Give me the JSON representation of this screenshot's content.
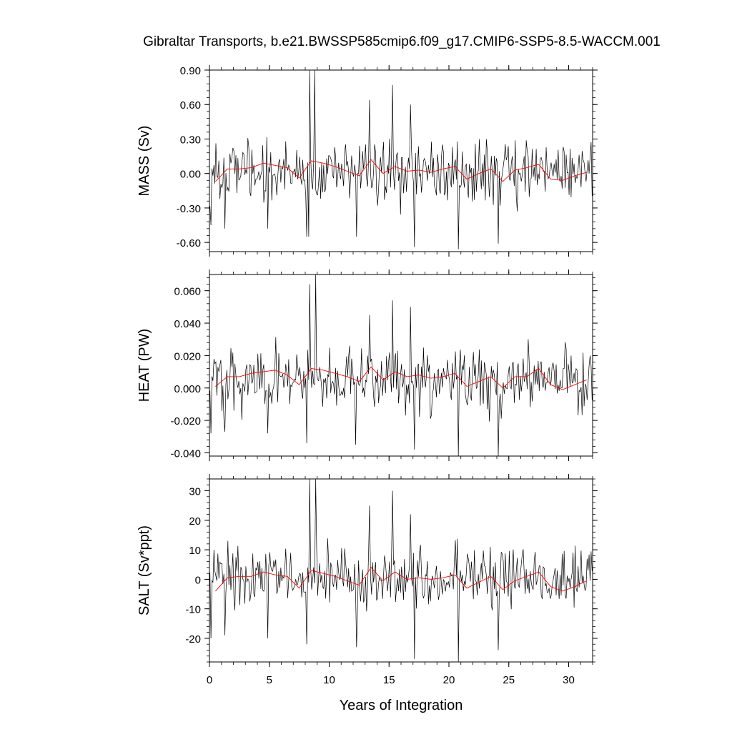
{
  "title": "Gibraltar Transports, b.e21.BWSSP585cmip6.f09_g17.CMIP6-SSP5-8.5-WACCM.001",
  "xlabel": "Years of Integration",
  "colors": {
    "monthly": "#000000",
    "annual_mean": "#ff0000"
  },
  "chart_data": [
    {
      "type": "line",
      "ylabel": "MASS (Sv)",
      "xlim": [
        0,
        32
      ],
      "ylim": [
        -0.68,
        0.9
      ],
      "yticks": [
        0.9,
        0.6,
        0.3,
        0.0,
        -0.3,
        -0.6
      ],
      "ytick_labels": [
        "0.90",
        "0.60",
        "0.30",
        "0.00",
        "-0.30",
        "-0.60"
      ],
      "xticks": [
        0,
        5,
        10,
        15,
        20,
        25,
        30
      ],
      "xtick_labels": [
        "0",
        "5",
        "10",
        "15",
        "20",
        "25",
        "30"
      ],
      "show_xtick_labels": false,
      "series": [
        {
          "style": "monthly",
          "x_start": 0.04,
          "x_step": 0.08333,
          "n": 384,
          "base": 0.0,
          "amp": 0.22,
          "extremes": [
            [
              0.1,
              -0.45
            ],
            [
              1.3,
              -0.48
            ],
            [
              4.9,
              -0.48
            ],
            [
              8.1,
              -0.55
            ],
            [
              8.3,
              -0.55
            ],
            [
              8.4,
              0.9
            ],
            [
              8.8,
              0.9
            ],
            [
              12.3,
              -0.55
            ],
            [
              15.3,
              0.77
            ],
            [
              17.1,
              -0.64
            ],
            [
              20.8,
              -0.66
            ],
            [
              24.1,
              -0.61
            ],
            [
              13.4,
              0.64
            ],
            [
              16.8,
              0.6
            ]
          ]
        },
        {
          "style": "annual_mean",
          "x": [
            0.5,
            1.5,
            2.5,
            3.5,
            4.5,
            5.5,
            6.5,
            7.5,
            8.5,
            9.5,
            10.5,
            11.5,
            12.5,
            13.5,
            14.5,
            15.5,
            16.5,
            17.5,
            18.5,
            19.5,
            20.5,
            21.5,
            22.5,
            23.5,
            24.5,
            25.5,
            26.5,
            27.5,
            28.5,
            29.5,
            30.5,
            31.5
          ],
          "values": [
            -0.07,
            0.04,
            0.04,
            0.05,
            0.09,
            0.07,
            0.05,
            -0.04,
            0.11,
            0.09,
            0.06,
            0.02,
            -0.02,
            0.12,
            0.0,
            0.06,
            0.02,
            0.03,
            0.01,
            0.04,
            0.06,
            -0.05,
            0.0,
            0.04,
            -0.07,
            0.03,
            0.05,
            0.08,
            -0.05,
            -0.06,
            -0.02,
            0.01
          ]
        }
      ]
    },
    {
      "type": "line",
      "ylabel": "HEAT (PW)",
      "xlim": [
        0,
        32
      ],
      "ylim": [
        -0.042,
        0.07
      ],
      "yticks": [
        0.06,
        0.04,
        0.02,
        0.0,
        -0.02,
        -0.04
      ],
      "ytick_labels": [
        "0.060",
        "0.040",
        "0.020",
        "0.000",
        "-0.020",
        "-0.040"
      ],
      "xticks": [
        0,
        5,
        10,
        15,
        20,
        25,
        30
      ],
      "xtick_labels": [
        "0",
        "5",
        "10",
        "15",
        "20",
        "25",
        "30"
      ],
      "show_xtick_labels": false,
      "series": [
        {
          "style": "monthly",
          "x_start": 0.04,
          "x_step": 0.08333,
          "n": 384,
          "base": 0.006,
          "amp": 0.015,
          "extremes": [
            [
              0.1,
              -0.028
            ],
            [
              1.3,
              -0.027
            ],
            [
              4.9,
              -0.028
            ],
            [
              8.1,
              -0.034
            ],
            [
              8.4,
              0.064
            ],
            [
              8.9,
              0.07
            ],
            [
              12.2,
              -0.035
            ],
            [
              15.3,
              0.054
            ],
            [
              17.1,
              -0.038
            ],
            [
              20.8,
              -0.042
            ],
            [
              24.1,
              -0.042
            ],
            [
              13.4,
              0.045
            ],
            [
              16.8,
              0.05
            ]
          ]
        },
        {
          "style": "annual_mean",
          "x": [
            0.5,
            1.5,
            2.5,
            3.5,
            4.5,
            5.5,
            6.5,
            7.5,
            8.5,
            9.5,
            10.5,
            11.5,
            12.5,
            13.5,
            14.5,
            15.5,
            16.5,
            17.5,
            18.5,
            19.5,
            20.5,
            21.5,
            22.5,
            23.5,
            24.5,
            25.5,
            26.5,
            27.5,
            28.5,
            29.5,
            30.5,
            31.5
          ],
          "values": [
            0.001,
            0.007,
            0.007,
            0.009,
            0.01,
            0.011,
            0.008,
            0.002,
            0.012,
            0.011,
            0.009,
            0.007,
            0.004,
            0.013,
            0.005,
            0.01,
            0.007,
            0.008,
            0.006,
            0.007,
            0.009,
            0.001,
            0.004,
            0.007,
            0.0,
            0.007,
            0.007,
            0.012,
            0.002,
            -0.001,
            0.002,
            0.005
          ]
        }
      ]
    },
    {
      "type": "line",
      "ylabel": "SALT (Sv*ppt)",
      "xlim": [
        0,
        32
      ],
      "ylim": [
        -28,
        34
      ],
      "yticks": [
        30,
        20,
        10,
        0,
        -10,
        -20
      ],
      "ytick_labels": [
        "30",
        "20",
        "10",
        "0",
        "-10",
        "-20"
      ],
      "xticks": [
        0,
        5,
        10,
        15,
        20,
        25,
        30
      ],
      "xtick_labels": [
        "0",
        "5",
        "10",
        "15",
        "20",
        "25",
        "30"
      ],
      "show_xtick_labels": true,
      "series": [
        {
          "style": "monthly",
          "x_start": 0.04,
          "x_step": 0.08333,
          "n": 384,
          "base": 0.0,
          "amp": 8.0,
          "extremes": [
            [
              0.1,
              -20
            ],
            [
              1.3,
              -19
            ],
            [
              4.9,
              -20
            ],
            [
              8.1,
              -22
            ],
            [
              8.4,
              34
            ],
            [
              8.9,
              34
            ],
            [
              12.3,
              -23
            ],
            [
              15.3,
              30
            ],
            [
              17.1,
              -27
            ],
            [
              20.8,
              -28
            ],
            [
              24.1,
              -24
            ],
            [
              13.4,
              25
            ],
            [
              16.8,
              22
            ]
          ]
        },
        {
          "style": "annual_mean",
          "x": [
            0.5,
            1.5,
            2.5,
            3.5,
            4.5,
            5.5,
            6.5,
            7.5,
            8.5,
            9.5,
            10.5,
            11.5,
            12.5,
            13.5,
            14.5,
            15.5,
            16.5,
            17.5,
            18.5,
            19.5,
            20.5,
            21.5,
            22.5,
            23.5,
            24.5,
            25.5,
            26.5,
            27.5,
            28.5,
            29.5,
            30.5,
            31.5
          ],
          "values": [
            -4,
            0.5,
            1,
            1,
            2.5,
            1.5,
            1,
            -3,
            3,
            2,
            1,
            -0.5,
            -2,
            4,
            -0.5,
            2.5,
            0,
            0.5,
            0,
            0.5,
            1.5,
            -3,
            -1,
            1,
            -3.5,
            -0.5,
            1,
            2.5,
            -2.5,
            -4,
            -2.5,
            -0.5
          ]
        }
      ]
    }
  ]
}
